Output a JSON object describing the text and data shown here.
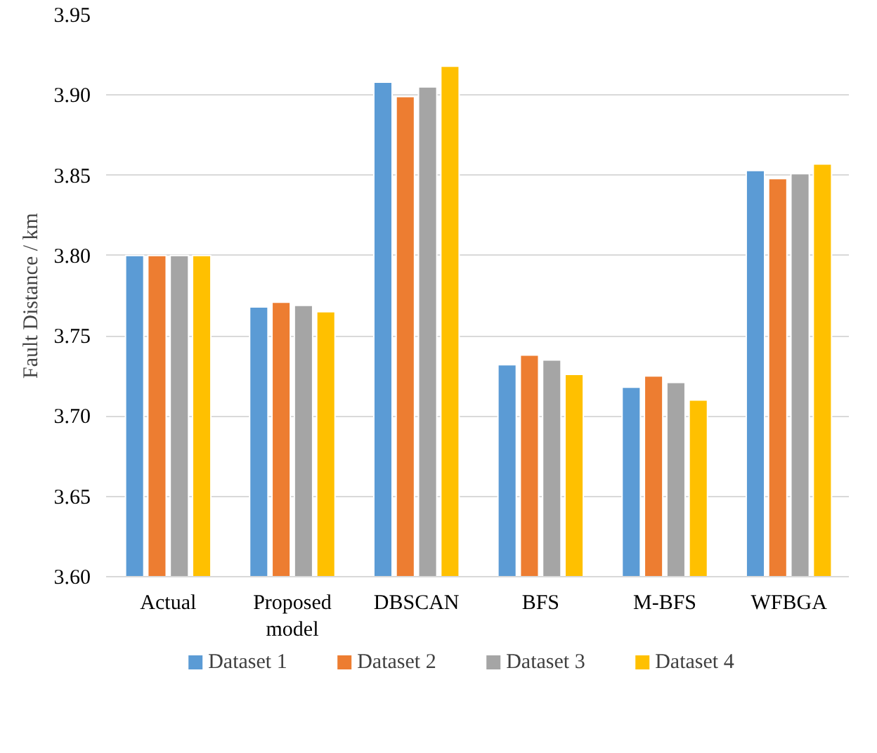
{
  "chart_data": {
    "type": "bar",
    "ylabel": "Fault Distance / km",
    "categories": [
      "Actual",
      "Proposed model",
      "DBSCAN",
      "BFS",
      "M-BFS",
      "WFBGA"
    ],
    "series": [
      {
        "name": "Dataset 1",
        "color": "#5b9bd5",
        "values": [
          3.8,
          3.768,
          3.908,
          3.732,
          3.718,
          3.853
        ]
      },
      {
        "name": "Dataset 2",
        "color": "#ed7d31",
        "values": [
          3.8,
          3.771,
          3.899,
          3.738,
          3.725,
          3.848
        ]
      },
      {
        "name": "Dataset 3",
        "color": "#a5a5a5",
        "values": [
          3.8,
          3.769,
          3.905,
          3.735,
          3.721,
          3.851
        ]
      },
      {
        "name": "Dataset 4",
        "color": "#ffc000",
        "values": [
          3.8,
          3.765,
          3.918,
          3.726,
          3.71,
          3.857
        ]
      }
    ],
    "ylim": [
      3.6,
      3.95
    ],
    "yticks": [
      {
        "value": 3.6,
        "label": "3.60"
      },
      {
        "value": 3.65,
        "label": "3.65"
      },
      {
        "value": 3.7,
        "label": "3.70"
      },
      {
        "value": 3.75,
        "label": "3.75"
      },
      {
        "value": 3.8,
        "label": "3.80"
      },
      {
        "value": 3.85,
        "label": "3.85"
      },
      {
        "value": 3.9,
        "label": "3.90"
      },
      {
        "value": 3.95,
        "label": "3.95"
      }
    ],
    "grid": "y",
    "legend": "bottom"
  }
}
